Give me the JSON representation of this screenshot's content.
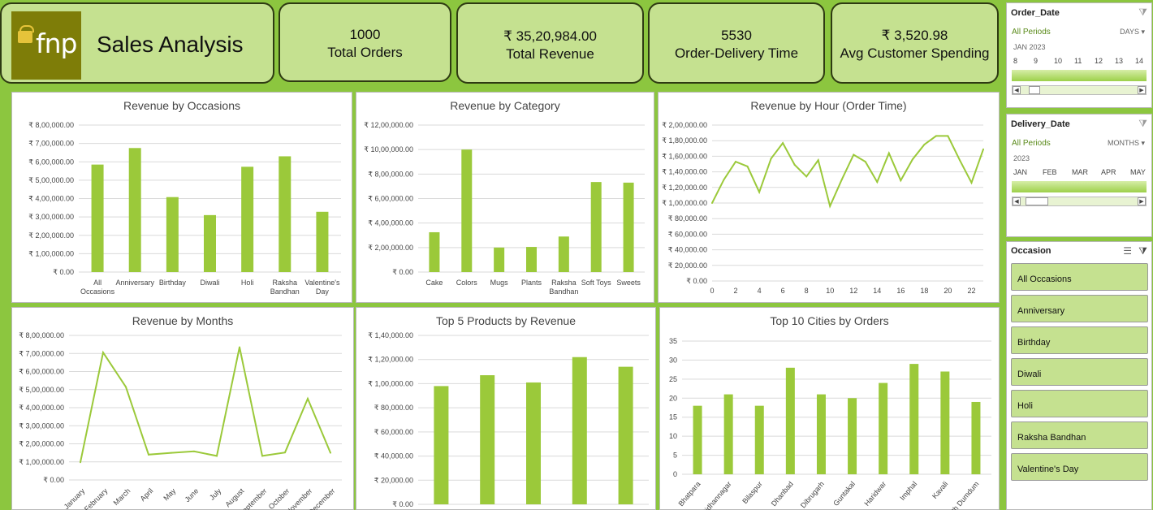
{
  "brand": {
    "logo_text": "fnp",
    "title": "Sales Analysis"
  },
  "kpis": [
    {
      "value": "1000",
      "label": "Total Orders"
    },
    {
      "value": "₹ 35,20,984.00",
      "label": "Total Revenue"
    },
    {
      "value": "5530",
      "label": "Order-Delivery Time"
    },
    {
      "value": "₹ 3,520.98",
      "label": "Avg Customer Spending"
    }
  ],
  "colors": {
    "bar": "#9bc93a",
    "background": "#8cc63f",
    "card": "#c5e190"
  },
  "chart_data": [
    {
      "type": "bar",
      "title": "Revenue by Occasions",
      "categories": [
        "All Occasions",
        "Anniversary",
        "Birthday",
        "Diwali",
        "Holi",
        "Raksha Bandhan",
        "Valentine's Day"
      ],
      "values": [
        585000,
        675000,
        408000,
        310000,
        573000,
        630000,
        328000
      ],
      "ylim": [
        0,
        800000
      ],
      "yticks": [
        "₹ 0.00",
        "₹ 1,00,000.00",
        "₹ 2,00,000.00",
        "₹ 3,00,000.00",
        "₹ 4,00,000.00",
        "₹ 5,00,000.00",
        "₹ 6,00,000.00",
        "₹ 7,00,000.00",
        "₹ 8,00,000.00"
      ]
    },
    {
      "type": "bar",
      "title": "Revenue by Category",
      "categories": [
        "Cake",
        "Colors",
        "Mugs",
        "Plants",
        "Raksha Bandhan",
        "Soft Toys",
        "Sweets"
      ],
      "values": [
        325000,
        1000000,
        200000,
        205000,
        290000,
        735000,
        730000
      ],
      "ylim": [
        0,
        1200000
      ],
      "yticks": [
        "₹ 0.00",
        "₹ 2,00,000.00",
        "₹ 4,00,000.00",
        "₹ 6,00,000.00",
        "₹ 8,00,000.00",
        "₹ 10,00,000.00",
        "₹ 12,00,000.00"
      ]
    },
    {
      "type": "line",
      "title": "Revenue by Hour (Order Time)",
      "x": [
        0,
        1,
        2,
        3,
        4,
        5,
        6,
        7,
        8,
        9,
        10,
        11,
        12,
        13,
        14,
        15,
        16,
        17,
        18,
        19,
        20,
        21,
        22,
        23
      ],
      "values": [
        100000,
        130000,
        153000,
        147000,
        114000,
        157000,
        177000,
        149000,
        134000,
        155000,
        96000,
        130000,
        162000,
        153000,
        127000,
        164000,
        129000,
        156000,
        175000,
        186000,
        186000,
        155000,
        126000,
        169000
      ],
      "ylim": [
        0,
        200000
      ],
      "xticks": [
        "0",
        "2",
        "4",
        "6",
        "8",
        "10",
        "12",
        "14",
        "16",
        "18",
        "20",
        "22"
      ],
      "yticks": [
        "₹ 0.00",
        "₹ 20,000.00",
        "₹ 40,000.00",
        "₹ 60,000.00",
        "₹ 80,000.00",
        "₹ 1,00,000.00",
        "₹ 1,20,000.00",
        "₹ 1,40,000.00",
        "₹ 1,60,000.00",
        "₹ 1,80,000.00",
        "₹ 2,00,000.00"
      ]
    },
    {
      "type": "line",
      "title": "Revenue by Months",
      "categories": [
        "January",
        "February",
        "March",
        "April",
        "May",
        "June",
        "July",
        "August",
        "September",
        "October",
        "November",
        "December"
      ],
      "values": [
        98000,
        705000,
        515000,
        140000,
        150000,
        158000,
        133000,
        735000,
        133000,
        152000,
        450000,
        150000
      ],
      "ylim": [
        0,
        800000
      ],
      "yticks": [
        "₹ 0.00",
        "₹ 1,00,000.00",
        "₹ 2,00,000.00",
        "₹ 3,00,000.00",
        "₹ 4,00,000.00",
        "₹ 5,00,000.00",
        "₹ 6,00,000.00",
        "₹ 7,00,000.00",
        "₹ 8,00,000.00"
      ]
    },
    {
      "type": "bar",
      "title": "Top 5 Products by Revenue",
      "categories": [
        "",
        "",
        "",
        "",
        ""
      ],
      "values": [
        98000,
        107000,
        101000,
        122000,
        114000
      ],
      "ylim": [
        0,
        140000
      ],
      "yticks": [
        "₹ 0.00",
        "₹ 20,000.00",
        "₹ 40,000.00",
        "₹ 60,000.00",
        "₹ 80,000.00",
        "₹ 1,00,000.00",
        "₹ 1,20,000.00",
        "₹ 1,40,000.00"
      ]
    },
    {
      "type": "bar",
      "title": "Top 10 Cities by Orders",
      "categories": [
        "Bhatpara",
        "Bidhannagar",
        "Bilaspur",
        "Dhanbad",
        "Dibrugarh",
        "Guntakal",
        "Haridwar",
        "Imphal",
        "Kavali",
        "North Dumdum"
      ],
      "values": [
        18,
        21,
        18,
        28,
        21,
        20,
        24,
        29,
        27,
        19
      ],
      "ylim": [
        0,
        35
      ],
      "yticks": [
        "0",
        "5",
        "10",
        "15",
        "20",
        "25",
        "30",
        "35"
      ]
    }
  ],
  "order_date": {
    "title": "Order_Date",
    "all_periods": "All Periods",
    "granularity": "DAYS",
    "period": "JAN 2023",
    "labels": [
      "8",
      "9",
      "10",
      "11",
      "12",
      "13",
      "14"
    ]
  },
  "delivery_date": {
    "title": "Delivery_Date",
    "all_periods": "All Periods",
    "granularity": "MONTHS",
    "period": "2023",
    "labels": [
      "JAN",
      "FEB",
      "MAR",
      "APR",
      "MAY"
    ]
  },
  "occasion": {
    "title": "Occasion",
    "items": [
      "All Occasions",
      "Anniversary",
      "Birthday",
      "Diwali",
      "Holi",
      "Raksha Bandhan",
      "Valentine's Day"
    ]
  },
  "icons": {
    "filter": "filter-clear-icon",
    "multiselect": "multiselect-icon",
    "scroll_left": "arrow-left-icon",
    "scroll_right": "arrow-right-icon",
    "dropdown": "chevron-down-icon",
    "logo_gift": "gift-icon"
  }
}
